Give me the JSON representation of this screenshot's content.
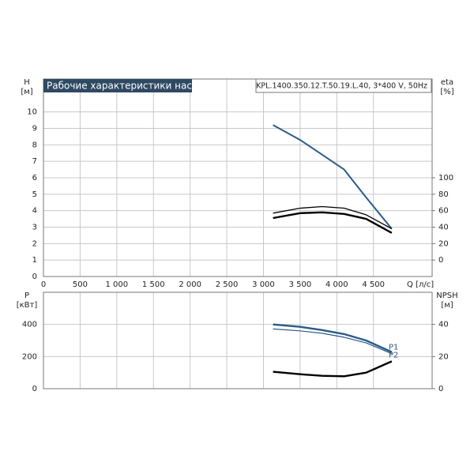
{
  "chart_data": [
    {
      "type": "line",
      "title": "Рабочие характеристики насоса",
      "model": "KPL.1400.350.12.T.50.19.L.40, 3*400 V, 50Hz",
      "ylabel": "H",
      "yunit": "[м]",
      "y2label": "eta",
      "y2unit": "[%]",
      "xlabel": "Q [л/с]",
      "x": [
        3130,
        3500,
        3800,
        4100,
        4400,
        4750
      ],
      "series": [
        {
          "color": "#2a5b8a",
          "values": [
            9.2,
            8.3,
            7.4,
            6.5,
            4.8,
            2.9
          ]
        },
        {
          "color": "#000000",
          "axis": "y2",
          "values": [
            57,
            63,
            65,
            63,
            55,
            38
          ]
        },
        {
          "color": "#000000",
          "axis": "y2",
          "values": [
            51,
            57,
            58,
            56,
            50,
            33
          ]
        }
      ],
      "xlim": [
        0,
        5300
      ],
      "xticks": [
        0,
        500,
        {
          "value": 1000,
          "label": "1 000"
        },
        {
          "value": 1500,
          "label": "1 500"
        },
        {
          "value": 2000,
          "label": "2 000"
        },
        {
          "value": 2500,
          "label": "2 500"
        },
        {
          "value": 3000,
          "label": "3 000"
        },
        {
          "value": 3500,
          "label": "3 500"
        },
        {
          "value": 4000,
          "label": "4 000"
        },
        {
          "value": 4500,
          "label": "4 500"
        }
      ],
      "ylim": [
        0,
        12
      ],
      "yticks": [
        0,
        1,
        2,
        3,
        4,
        5,
        6,
        7,
        8,
        9,
        10
      ],
      "y2lim": [
        -20,
        220
      ],
      "y2ticks": [
        0,
        20,
        40,
        60,
        80,
        100
      ],
      "grid": true
    },
    {
      "type": "line",
      "ylabel": "P",
      "yunit": "[кВт]",
      "y2label": "NPSH",
      "y2unit": "[м]",
      "x": [
        3130,
        3500,
        3800,
        4100,
        4400,
        4750
      ],
      "series": [
        {
          "name": "P1",
          "color": "#2a5b8a",
          "values": [
            400,
            385,
            365,
            340,
            300,
            228
          ]
        },
        {
          "name": "P2",
          "color": "#2a5b8a",
          "values": [
            372,
            360,
            345,
            320,
            285,
            218
          ]
        },
        {
          "color": "#000000",
          "axis": "y2",
          "values": [
            10.5,
            9,
            8,
            7.7,
            10,
            17
          ]
        }
      ],
      "xlim": [
        0,
        5300
      ],
      "xticks": [
        0,
        500,
        1000,
        1500,
        2000,
        2500,
        3000,
        3500,
        4000,
        4500
      ],
      "ylim": [
        0,
        600
      ],
      "yticks": [
        0,
        200,
        400
      ],
      "y2lim": [
        0,
        60
      ],
      "y2ticks": [
        0,
        20,
        40
      ],
      "grid": true
    }
  ]
}
